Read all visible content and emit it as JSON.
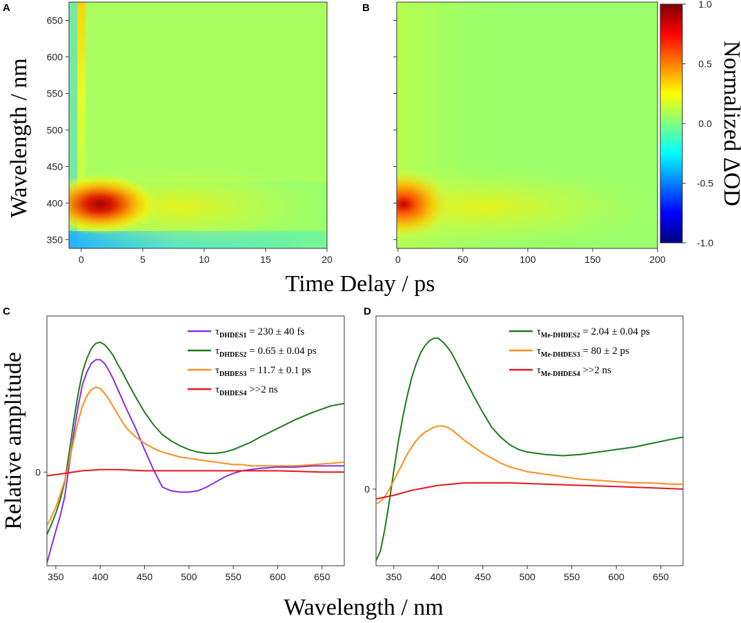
{
  "chart_data": [
    {
      "panel": "A",
      "type": "heatmap",
      "xlabel": "Time Delay / ps",
      "ylabel": "Wavelength / nm",
      "xlim": [
        -1,
        20
      ],
      "ylim": [
        338,
        675
      ],
      "x_ticks": [
        0,
        5,
        10,
        15,
        20
      ],
      "y_ticks": [
        350,
        400,
        450,
        500,
        550,
        600,
        650
      ],
      "features": [
        {
          "x": 0.6,
          "y": 398,
          "value": 1.0
        },
        {
          "x": 0.5,
          "y": 345,
          "value": -0.25
        },
        {
          "x": 0.4,
          "y": 600,
          "value": 0.3
        },
        {
          "x": 10,
          "y": 400,
          "value": 0.35
        }
      ]
    },
    {
      "panel": "B",
      "type": "heatmap",
      "xlabel": "Time Delay / ps",
      "ylabel": "Wavelength / nm",
      "xlim": [
        -1,
        200
      ],
      "ylim": [
        338,
        675
      ],
      "x_ticks": [
        0,
        50,
        100,
        150,
        200
      ],
      "y_ticks": [
        350,
        400,
        450,
        500,
        550,
        600,
        650
      ],
      "colorbar": {
        "label": "Normalized ΔOD",
        "ticks": [
          "1.0",
          "0.5",
          "0.0",
          "-0.5",
          "-1.0"
        ],
        "range": [
          -1.0,
          1.0
        ],
        "colors": [
          "#00007f",
          "#0000ff",
          "#0080ff",
          "#00ffff",
          "#7fff7f",
          "#ffff00",
          "#ff8000",
          "#ff0000",
          "#7f0000"
        ]
      }
    },
    {
      "panel": "C",
      "type": "line",
      "xlabel": "Wavelength / nm",
      "ylabel": "Relative amplitude",
      "xlim": [
        340,
        675
      ],
      "ylim": [
        -0.75,
        1.25
      ],
      "x_ticks": [
        350,
        400,
        450,
        500,
        550,
        600,
        650
      ],
      "y_ticks": [
        0
      ],
      "series": [
        {
          "symbol": "τ",
          "sub": "DHDES1",
          "text": " = 230 ± 40 fs",
          "color": "#8a2be2",
          "x": [
            340,
            345,
            350,
            355,
            360,
            365,
            370,
            375,
            380,
            385,
            390,
            395,
            400,
            405,
            410,
            415,
            420,
            425,
            430,
            440,
            450,
            460,
            470,
            480,
            490,
            500,
            510,
            520,
            530,
            540,
            550,
            560,
            570,
            580,
            600,
            620,
            640,
            660,
            675
          ],
          "y": [
            -0.73,
            -0.6,
            -0.47,
            -0.35,
            -0.2,
            0.05,
            0.3,
            0.52,
            0.7,
            0.8,
            0.87,
            0.9,
            0.9,
            0.87,
            0.81,
            0.74,
            0.66,
            0.58,
            0.5,
            0.35,
            0.18,
            0.02,
            -0.12,
            -0.15,
            -0.16,
            -0.16,
            -0.15,
            -0.12,
            -0.08,
            -0.04,
            -0.01,
            0.01,
            0.02,
            0.03,
            0.04,
            0.04,
            0.05,
            0.05,
            0.05
          ]
        },
        {
          "symbol": "τ",
          "sub": "DHDES2",
          "text": " = 0.65 ± 0.04 ps",
          "color": "#1a7a1a",
          "x": [
            340,
            345,
            350,
            355,
            360,
            365,
            370,
            375,
            380,
            385,
            390,
            395,
            400,
            405,
            410,
            415,
            420,
            425,
            430,
            440,
            450,
            460,
            470,
            480,
            490,
            500,
            510,
            520,
            530,
            540,
            550,
            560,
            570,
            580,
            600,
            620,
            640,
            660,
            675
          ],
          "y": [
            -0.5,
            -0.42,
            -0.33,
            -0.22,
            -0.08,
            0.15,
            0.4,
            0.62,
            0.8,
            0.91,
            0.99,
            1.03,
            1.04,
            1.02,
            0.98,
            0.93,
            0.86,
            0.8,
            0.73,
            0.6,
            0.48,
            0.38,
            0.3,
            0.25,
            0.21,
            0.18,
            0.16,
            0.15,
            0.15,
            0.16,
            0.18,
            0.21,
            0.24,
            0.28,
            0.35,
            0.42,
            0.48,
            0.53,
            0.55
          ]
        },
        {
          "symbol": "τ",
          "sub": "DHDES3",
          "text": " = 11.7 ± 0.1 ps",
          "color": "#ff8c1a",
          "x": [
            340,
            345,
            350,
            355,
            360,
            365,
            370,
            375,
            380,
            385,
            390,
            395,
            400,
            405,
            410,
            415,
            420,
            425,
            430,
            440,
            450,
            460,
            470,
            480,
            490,
            500,
            510,
            520,
            530,
            540,
            550,
            560,
            570,
            580,
            600,
            620,
            640,
            660,
            675
          ],
          "y": [
            -0.43,
            -0.36,
            -0.28,
            -0.18,
            -0.07,
            0.08,
            0.25,
            0.4,
            0.53,
            0.61,
            0.66,
            0.68,
            0.67,
            0.63,
            0.58,
            0.52,
            0.46,
            0.4,
            0.35,
            0.28,
            0.23,
            0.19,
            0.16,
            0.14,
            0.12,
            0.11,
            0.1,
            0.09,
            0.08,
            0.07,
            0.06,
            0.06,
            0.05,
            0.05,
            0.05,
            0.05,
            0.06,
            0.07,
            0.08
          ]
        },
        {
          "symbol": "τ",
          "sub": "DHDES4",
          "text": " >>2 ns",
          "color": "#e8141a",
          "x": [
            340,
            360,
            380,
            400,
            420,
            450,
            500,
            550,
            600,
            650,
            675
          ],
          "y": [
            -0.03,
            -0.01,
            0.01,
            0.02,
            0.02,
            0.01,
            0.01,
            0.01,
            0.01,
            0.0,
            0.0
          ]
        }
      ]
    },
    {
      "panel": "D",
      "type": "line",
      "xlabel": "Wavelength / nm",
      "ylabel": "",
      "xlim": [
        330,
        675
      ],
      "ylim": [
        -0.62,
        1.4
      ],
      "x_ticks": [
        350,
        400,
        450,
        500,
        550,
        600,
        650
      ],
      "y_ticks": [
        0
      ],
      "series": [
        {
          "symbol": "τ",
          "sub": "Me-DHDES2",
          "text": " = 2.04 ± 0.04 ps",
          "color": "#1a7a1a",
          "x": [
            330,
            335,
            340,
            345,
            350,
            355,
            360,
            365,
            370,
            375,
            380,
            385,
            390,
            395,
            400,
            405,
            410,
            415,
            420,
            425,
            430,
            440,
            450,
            460,
            470,
            480,
            490,
            500,
            520,
            540,
            560,
            580,
            600,
            620,
            640,
            660,
            675
          ],
          "y": [
            -0.58,
            -0.5,
            -0.32,
            -0.1,
            0.15,
            0.38,
            0.58,
            0.75,
            0.9,
            1.01,
            1.1,
            1.16,
            1.2,
            1.22,
            1.22,
            1.19,
            1.15,
            1.1,
            1.03,
            0.96,
            0.89,
            0.75,
            0.62,
            0.5,
            0.42,
            0.36,
            0.32,
            0.3,
            0.28,
            0.27,
            0.28,
            0.3,
            0.32,
            0.34,
            0.37,
            0.4,
            0.42
          ]
        },
        {
          "symbol": "τ",
          "sub": "Me-DHDES3",
          "text": " = 80 ± 2 ps",
          "color": "#ff8c1a",
          "x": [
            330,
            335,
            340,
            345,
            350,
            355,
            360,
            365,
            370,
            375,
            380,
            385,
            390,
            395,
            400,
            405,
            410,
            415,
            420,
            425,
            430,
            440,
            450,
            460,
            470,
            480,
            490,
            500,
            520,
            540,
            560,
            580,
            600,
            620,
            640,
            660,
            675
          ],
          "y": [
            -0.12,
            -0.1,
            -0.06,
            0.0,
            0.07,
            0.14,
            0.21,
            0.28,
            0.34,
            0.39,
            0.43,
            0.46,
            0.48,
            0.5,
            0.51,
            0.51,
            0.5,
            0.48,
            0.45,
            0.42,
            0.39,
            0.34,
            0.29,
            0.25,
            0.21,
            0.18,
            0.16,
            0.14,
            0.12,
            0.1,
            0.08,
            0.07,
            0.06,
            0.05,
            0.05,
            0.04,
            0.04
          ]
        },
        {
          "symbol": "τ",
          "sub": "Me-DHDES4",
          "text": " >>2 ns",
          "color": "#e8141a",
          "x": [
            330,
            350,
            370,
            400,
            430,
            450,
            480,
            520,
            560,
            600,
            640,
            675
          ],
          "y": [
            -0.08,
            -0.05,
            -0.01,
            0.03,
            0.05,
            0.05,
            0.05,
            0.04,
            0.03,
            0.02,
            0.01,
            0.0
          ]
        }
      ]
    }
  ]
}
